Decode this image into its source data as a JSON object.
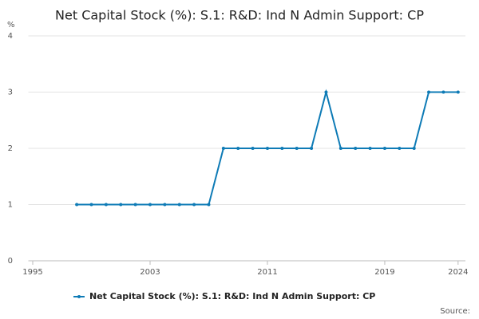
{
  "chart_data": {
    "type": "line",
    "title": "Net Capital Stock (%): S.1: R&D: Ind N Admin Support: CP",
    "y_label": "%",
    "source": "Source:",
    "x": [
      1998,
      1999,
      2000,
      2001,
      2002,
      2003,
      2004,
      2005,
      2006,
      2007,
      2008,
      2009,
      2010,
      2011,
      2012,
      2013,
      2014,
      2015,
      2016,
      2017,
      2018,
      2019,
      2020,
      2021,
      2022,
      2023,
      2024
    ],
    "series": [
      {
        "name": "Net Capital Stock (%): S.1: R&D: Ind N Admin Support: CP",
        "color": "#0e7bb6",
        "values": [
          1,
          1,
          1,
          1,
          1,
          1,
          1,
          1,
          1,
          1,
          2,
          2,
          2,
          2,
          2,
          2,
          2,
          3,
          2,
          2,
          2,
          2,
          2,
          2,
          3,
          3,
          3
        ]
      }
    ],
    "xlim": [
      1994.7,
      2024.5
    ],
    "xticks": [
      1995,
      2003,
      2011,
      2019,
      2024
    ],
    "ylim": [
      0,
      4
    ],
    "yticks": [
      0,
      1,
      2,
      3,
      4
    ],
    "grid": true
  }
}
